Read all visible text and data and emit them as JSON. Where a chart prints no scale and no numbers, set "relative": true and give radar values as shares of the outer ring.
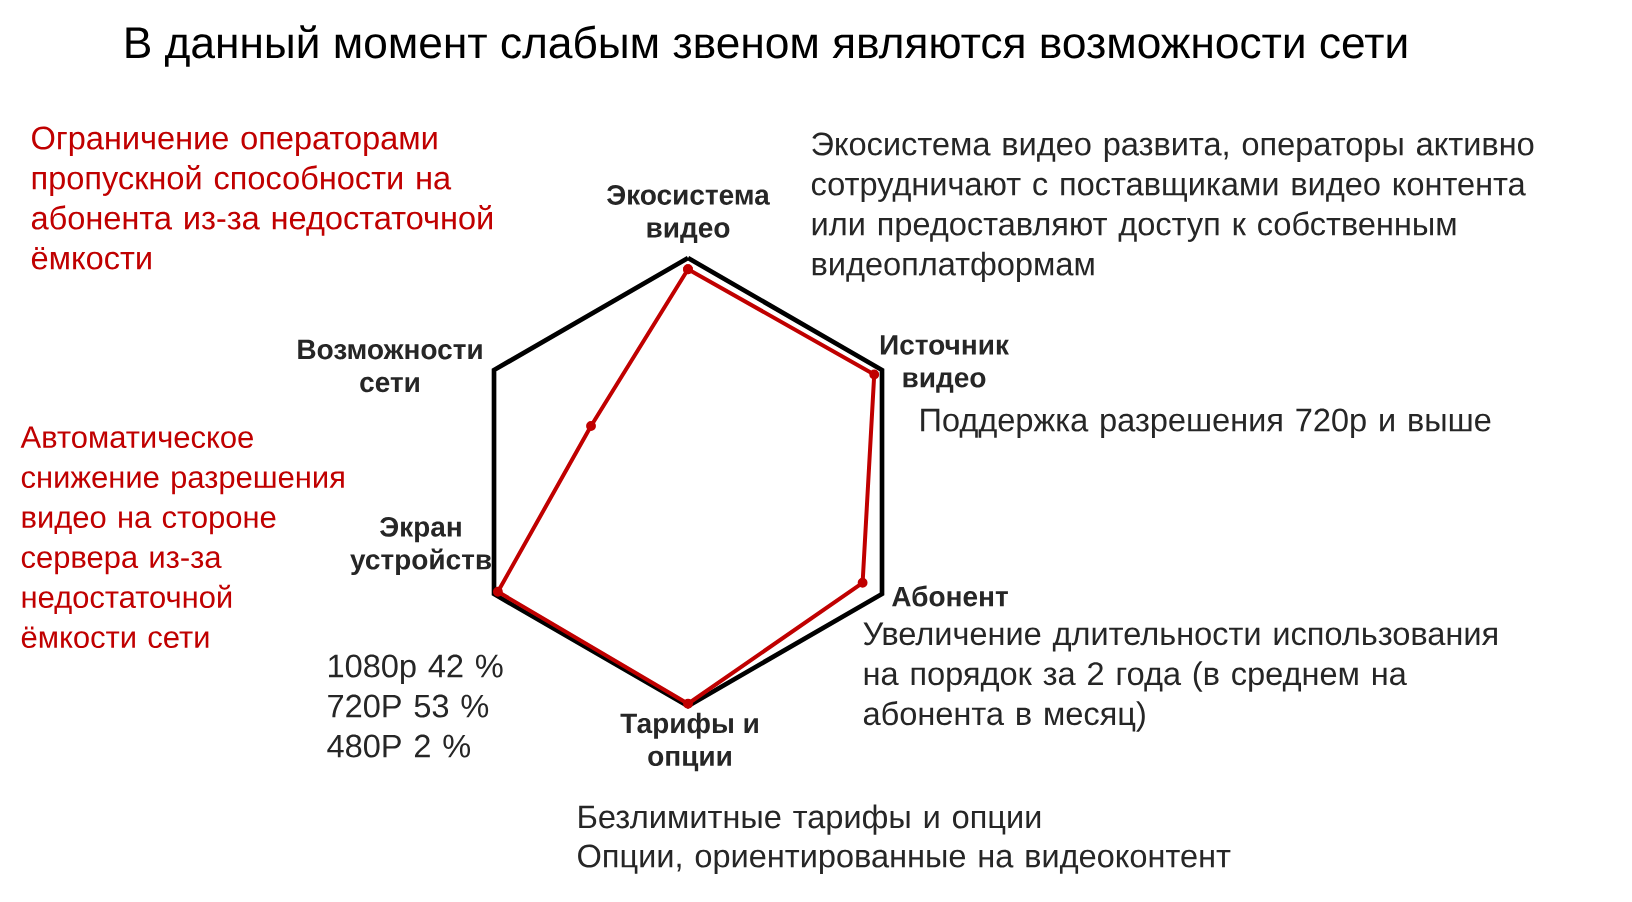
{
  "chart_data": {
    "type": "radar",
    "title": "В данный момент слабым звеном являются возможности сети",
    "categories": [
      "Экосистема видео",
      "Источник видео",
      "Абонент",
      "Тарифы и опции",
      "Экран устройств",
      "Возможности сети"
    ],
    "relative": true,
    "grid": true,
    "marker": "circle",
    "series": [
      {
        "color": "#c00000",
        "values": [
          0.95,
          0.96,
          0.9,
          0.99,
          0.98,
          0.5
        ]
      }
    ],
    "annotations": [
      "Ограничение операторами пропускной способности на абонента из-за недостаточной ёмкости",
      "Экосистема видео развита, операторы активно сотрудничают с поставщиками видео контента или предоставляют доступ к собственным видеоплатформам",
      "Автоматическое снижение разрешения видео на стороне сервера из-за недостаточной ёмкости сети",
      "Поддержка разрешения 720p и выше",
      "1080p 42 %",
      "720P 53 %",
      "480P 2 %",
      "Увеличение длительности использования на порядок за 2 года (в среднем на абонента в месяц)",
      "Безлимитные тарифы и опции",
      "Опции, ориентированные на видеоконтент"
    ]
  }
}
